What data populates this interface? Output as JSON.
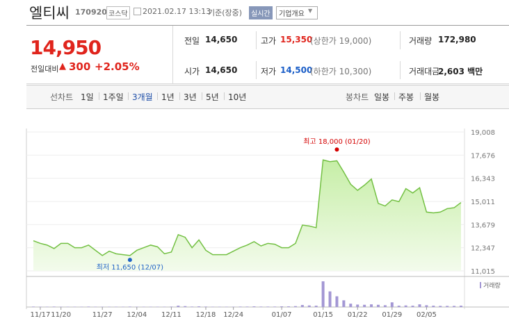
{
  "header": {
    "name": "엘티씨",
    "code": "170920",
    "market": "코스닥",
    "datetime": "2021.02.17 13:13",
    "basis": "기준(장중)",
    "realtime": "실시간",
    "company_info": "기업개요"
  },
  "quote": {
    "price": "14,950",
    "change_label": "전일대비",
    "change": "300",
    "change_rate": "+2.05%"
  },
  "stats": [
    {
      "label": "전일",
      "value": "14,650"
    },
    {
      "label": "고가",
      "value": "15,350",
      "note": "(상한가 19,000)"
    },
    {
      "label": "거래량",
      "value": "172,980"
    },
    {
      "label": "시가",
      "value": "14,650"
    },
    {
      "label": "저가",
      "value": "14,500",
      "note": "(하한가 10,300)"
    },
    {
      "label": "거래대금",
      "value": "2,603 백만"
    }
  ],
  "tabs": {
    "line_label": "선차트",
    "periods": [
      "1일",
      "1주일",
      "3개월",
      "1년",
      "3년",
      "5년",
      "10년"
    ],
    "candle_label": "봉차트",
    "candles": [
      "일봉",
      "주봉",
      "월봉"
    ]
  },
  "chart_data": {
    "type": "line",
    "color": "#73c043",
    "categories": [
      null,
      "11/17",
      null,
      null,
      "11/20",
      null,
      null,
      null,
      null,
      null,
      "11/27",
      null,
      null,
      null,
      null,
      "12/04",
      null,
      null,
      null,
      null,
      "12/11",
      null,
      null,
      null,
      null,
      "12/18",
      null,
      null,
      null,
      "12/24",
      null,
      null,
      null,
      null,
      null,
      null,
      "01/07",
      null,
      null,
      null,
      null,
      null,
      "01/15",
      null,
      null,
      null,
      null,
      "01/22",
      null,
      null,
      null,
      null,
      "01/29",
      null,
      null,
      null,
      null,
      "02/05",
      null,
      null,
      null,
      null,
      null
    ],
    "values": [
      12750,
      12600,
      12500,
      12300,
      12600,
      12600,
      12350,
      12350,
      12500,
      12200,
      11900,
      12150,
      12000,
      11950,
      11900,
      12200,
      12350,
      12500,
      12400,
      12000,
      12100,
      13100,
      12950,
      12350,
      12800,
      12200,
      11950,
      11950,
      11950,
      12150,
      12350,
      12500,
      12700,
      12450,
      12600,
      12550,
      12350,
      12350,
      12600,
      13650,
      13600,
      13500,
      17400,
      17300,
      17350,
      16700,
      16000,
      15650,
      15950,
      16300,
      14900,
      14750,
      15100,
      15000,
      15750,
      15500,
      15800,
      14400,
      14350,
      14400,
      14600,
      14650,
      14950
    ],
    "ylim": [
      11015,
      19008
    ],
    "yticks": [
      {
        "value": 11015,
        "label": "11,015"
      },
      {
        "value": 12347,
        "label": "12,347"
      },
      {
        "value": 13679,
        "label": "13,679"
      },
      {
        "value": 15011,
        "label": "15,011"
      },
      {
        "value": 16343,
        "label": "16,343"
      },
      {
        "value": 17676,
        "label": "17,676"
      },
      {
        "value": 19008,
        "label": "19,008"
      }
    ],
    "grid": true,
    "annotations": [
      {
        "label": "최고 18,000 (01/20)",
        "value": 18000,
        "color": "#d40000"
      },
      {
        "label": "최저 11,650 (12/07)",
        "value": 11650,
        "color": "#1f63c6"
      }
    ],
    "volume": {
      "name": "거래량",
      "color": "#a397d4",
      "values": [
        20000,
        15000,
        15000,
        20000,
        15000,
        15000,
        15000,
        15000,
        20000,
        15000,
        15000,
        15000,
        15000,
        15000,
        20000,
        15000,
        15000,
        15000,
        15000,
        15000,
        20000,
        60000,
        40000,
        20000,
        30000,
        20000,
        15000,
        15000,
        15000,
        15000,
        20000,
        20000,
        30000,
        20000,
        20000,
        20000,
        30000,
        30000,
        40000,
        90000,
        70000,
        60000,
        1150000,
        700000,
        480000,
        300000,
        150000,
        110000,
        100000,
        120000,
        100000,
        80000,
        210000,
        60000,
        70000,
        60000,
        120000,
        80000,
        60000,
        50000,
        50000,
        50000,
        60000
      ]
    }
  }
}
